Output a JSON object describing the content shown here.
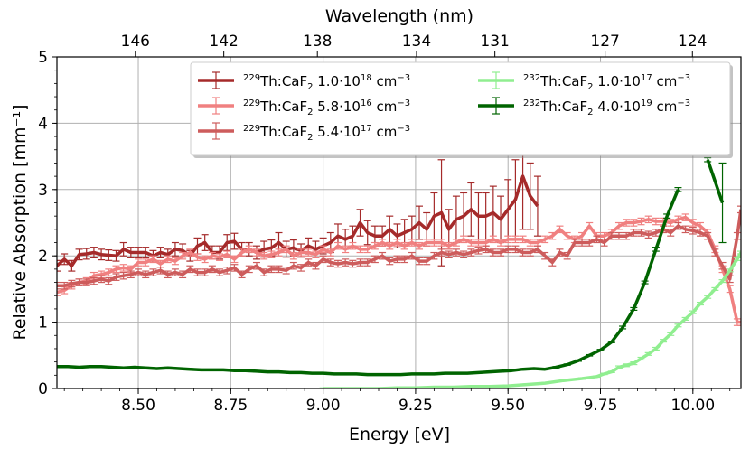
{
  "chart_data": {
    "type": "line",
    "xlabel": "Energy [eV]",
    "ylabel": "Relative Absorption [mm⁻¹]",
    "top_xlabel": "Wavelength (nm)",
    "xlim": [
      8.28,
      10.13
    ],
    "ylim": [
      0,
      5
    ],
    "xticks": [
      8.5,
      8.75,
      9.0,
      9.25,
      9.5,
      9.75,
      10.0
    ],
    "xtick_labels": [
      "8.50",
      "8.75",
      "9.00",
      "9.25",
      "9.50",
      "9.75",
      "10.00"
    ],
    "yticks": [
      0,
      1,
      2,
      3,
      4,
      5
    ],
    "ytick_labels": [
      "0",
      "1",
      "2",
      "3",
      "4",
      "5"
    ],
    "top_ticks_nm": [
      146,
      142,
      138,
      134,
      131,
      127,
      124
    ],
    "top_tick_labels": [
      "146",
      "142",
      "138",
      "134",
      "131",
      "127",
      "124"
    ],
    "grid": true,
    "legend_position": "top-right",
    "series": [
      {
        "name": "229Th:CaF2 1.0e18",
        "legend": {
          "sup": "229",
          "base": "Th:CaF",
          "sub": "2",
          "conc": "  1.0·10",
          "exp": "18",
          "unit": " cm",
          "unit_exp": "−3"
        },
        "color": "#a52a2a",
        "x": [
          8.28,
          8.3,
          8.32,
          8.34,
          8.36,
          8.38,
          8.4,
          8.42,
          8.44,
          8.46,
          8.48,
          8.5,
          8.52,
          8.54,
          8.56,
          8.58,
          8.6,
          8.62,
          8.64,
          8.66,
          8.68,
          8.7,
          8.72,
          8.74,
          8.76,
          8.78,
          8.8,
          8.82,
          8.84,
          8.86,
          8.88,
          8.9,
          8.92,
          8.94,
          8.96,
          8.98,
          9.0,
          9.02,
          9.04,
          9.06,
          9.08,
          9.1,
          9.12,
          9.14,
          9.16,
          9.18,
          9.2,
          9.22,
          9.24,
          9.26,
          9.28,
          9.3,
          9.32,
          9.34,
          9.36,
          9.38,
          9.4,
          9.42,
          9.44,
          9.46,
          9.48,
          9.5,
          9.52,
          9.54,
          9.56,
          9.58
        ],
        "y": [
          1.85,
          1.95,
          1.85,
          2.02,
          2.03,
          2.05,
          2.02,
          2.01,
          2.0,
          2.1,
          2.05,
          2.05,
          2.05,
          2.0,
          2.05,
          2.02,
          2.1,
          2.08,
          2.0,
          2.15,
          2.2,
          2.05,
          2.05,
          2.2,
          2.22,
          2.1,
          2.1,
          2.05,
          2.1,
          2.12,
          2.2,
          2.1,
          2.12,
          2.08,
          2.15,
          2.1,
          2.15,
          2.2,
          2.3,
          2.25,
          2.3,
          2.5,
          2.35,
          2.3,
          2.3,
          2.4,
          2.3,
          2.35,
          2.4,
          2.5,
          2.4,
          2.6,
          2.65,
          2.4,
          2.55,
          2.6,
          2.7,
          2.6,
          2.6,
          2.65,
          2.55,
          2.7,
          2.85,
          3.2,
          2.9,
          2.75
        ],
        "err": [
          0.08,
          0.08,
          0.08,
          0.08,
          0.08,
          0.08,
          0.08,
          0.08,
          0.08,
          0.1,
          0.08,
          0.08,
          0.08,
          0.08,
          0.08,
          0.08,
          0.1,
          0.1,
          0.08,
          0.12,
          0.12,
          0.1,
          0.1,
          0.12,
          0.12,
          0.1,
          0.1,
          0.1,
          0.12,
          0.12,
          0.15,
          0.12,
          0.12,
          0.1,
          0.12,
          0.12,
          0.12,
          0.15,
          0.18,
          0.15,
          0.15,
          0.2,
          0.18,
          0.15,
          0.15,
          0.2,
          0.18,
          0.2,
          0.2,
          0.25,
          0.25,
          0.35,
          0.8,
          0.3,
          0.35,
          0.35,
          0.4,
          0.35,
          0.35,
          0.4,
          0.35,
          0.45,
          0.6,
          0.8,
          0.5,
          0.45
        ]
      },
      {
        "name": "229Th:CaF2 5.8e16",
        "legend": {
          "sup": "229",
          "base": "Th:CaF",
          "sub": "2",
          "conc": " 5.8·10",
          "exp": "16",
          "unit": " cm",
          "unit_exp": "−3"
        },
        "color": "#f08080",
        "x": [
          8.28,
          8.3,
          8.32,
          8.34,
          8.36,
          8.38,
          8.4,
          8.42,
          8.44,
          8.46,
          8.48,
          8.5,
          8.52,
          8.54,
          8.56,
          8.58,
          8.6,
          8.62,
          8.64,
          8.66,
          8.68,
          8.7,
          8.72,
          8.74,
          8.76,
          8.78,
          8.8,
          8.82,
          8.84,
          8.86,
          8.88,
          8.9,
          8.92,
          8.94,
          8.96,
          8.98,
          9.0,
          9.02,
          9.04,
          9.06,
          9.08,
          9.1,
          9.12,
          9.14,
          9.16,
          9.18,
          9.2,
          9.22,
          9.24,
          9.26,
          9.28,
          9.3,
          9.32,
          9.34,
          9.36,
          9.38,
          9.4,
          9.42,
          9.44,
          9.46,
          9.48,
          9.5,
          9.52,
          9.54,
          9.56,
          9.58,
          9.6,
          9.62,
          9.64,
          9.66,
          9.68,
          9.7,
          9.72,
          9.74,
          9.76,
          9.78,
          9.8,
          9.82,
          9.84,
          9.86,
          9.88,
          9.9,
          9.92,
          9.94,
          9.96,
          9.98,
          10.0,
          10.02,
          10.04,
          10.06,
          10.08,
          10.1,
          10.12,
          10.13
        ],
        "y": [
          1.45,
          1.48,
          1.55,
          1.6,
          1.62,
          1.7,
          1.72,
          1.75,
          1.8,
          1.82,
          1.8,
          1.9,
          1.9,
          1.95,
          1.88,
          1.95,
          1.92,
          2.0,
          2.05,
          1.98,
          1.95,
          2.0,
          1.98,
          2.02,
          1.95,
          2.05,
          2.1,
          2.05,
          2.0,
          2.02,
          2.05,
          2.1,
          2.0,
          2.05,
          2.05,
          2.02,
          2.1,
          2.05,
          2.15,
          2.1,
          2.15,
          2.1,
          2.1,
          2.15,
          2.2,
          2.15,
          2.2,
          2.15,
          2.2,
          2.15,
          2.2,
          2.2,
          2.2,
          2.15,
          2.2,
          2.25,
          2.2,
          2.2,
          2.2,
          2.25,
          2.2,
          2.25,
          2.25,
          2.25,
          2.2,
          2.2,
          2.25,
          2.3,
          2.4,
          2.3,
          2.25,
          2.3,
          2.45,
          2.3,
          2.3,
          2.35,
          2.45,
          2.5,
          2.5,
          2.52,
          2.55,
          2.52,
          2.52,
          2.5,
          2.55,
          2.58,
          2.5,
          2.45,
          2.35,
          2.1,
          1.8,
          1.5,
          1.0,
          1.0
        ],
        "err": [
          0.05,
          0.05,
          0.05,
          0.05,
          0.05,
          0.05,
          0.05,
          0.05,
          0.05,
          0.05,
          0.05,
          0.05,
          0.05,
          0.05,
          0.05,
          0.05,
          0.05,
          0.05,
          0.05,
          0.05,
          0.05,
          0.05,
          0.05,
          0.05,
          0.05,
          0.05,
          0.05,
          0.05,
          0.05,
          0.05,
          0.05,
          0.05,
          0.05,
          0.05,
          0.05,
          0.05,
          0.05,
          0.05,
          0.05,
          0.05,
          0.05,
          0.05,
          0.05,
          0.05,
          0.05,
          0.05,
          0.05,
          0.05,
          0.05,
          0.05,
          0.05,
          0.05,
          0.05,
          0.05,
          0.05,
          0.05,
          0.05,
          0.05,
          0.05,
          0.05,
          0.05,
          0.05,
          0.05,
          0.05,
          0.05,
          0.05,
          0.05,
          0.05,
          0.05,
          0.05,
          0.05,
          0.05,
          0.05,
          0.05,
          0.05,
          0.05,
          0.05,
          0.05,
          0.05,
          0.05,
          0.05,
          0.05,
          0.05,
          0.05,
          0.05,
          0.05,
          0.05,
          0.05,
          0.05,
          0.05,
          0.05,
          0.05,
          0.05,
          0.05
        ]
      },
      {
        "name": "229Th:CaF2 5.4e17",
        "legend": {
          "sup": "229",
          "base": "Th:CaF",
          "sub": "2",
          "conc": " 5.4·10",
          "exp": "17",
          "unit": " cm",
          "unit_exp": "−3"
        },
        "color": "#cd5c5c",
        "x": [
          8.28,
          8.3,
          8.32,
          8.34,
          8.36,
          8.38,
          8.4,
          8.42,
          8.44,
          8.46,
          8.48,
          8.5,
          8.52,
          8.54,
          8.56,
          8.58,
          8.6,
          8.62,
          8.64,
          8.66,
          8.68,
          8.7,
          8.72,
          8.74,
          8.76,
          8.78,
          8.8,
          8.82,
          8.84,
          8.86,
          8.88,
          8.9,
          8.92,
          8.94,
          8.96,
          8.98,
          9.0,
          9.02,
          9.04,
          9.06,
          9.08,
          9.1,
          9.12,
          9.14,
          9.16,
          9.18,
          9.2,
          9.22,
          9.24,
          9.26,
          9.28,
          9.3,
          9.32,
          9.34,
          9.36,
          9.38,
          9.4,
          9.42,
          9.44,
          9.46,
          9.48,
          9.5,
          9.52,
          9.54,
          9.56,
          9.58,
          9.6,
          9.62,
          9.64,
          9.66,
          9.68,
          9.7,
          9.72,
          9.74,
          9.76,
          9.78,
          9.8,
          9.82,
          9.84,
          9.86,
          9.88,
          9.9,
          9.92,
          9.94,
          9.96,
          9.98,
          10.0,
          10.02,
          10.04,
          10.06,
          10.08,
          10.1,
          10.12,
          10.13
        ],
        "y": [
          1.55,
          1.55,
          1.58,
          1.6,
          1.6,
          1.62,
          1.65,
          1.62,
          1.68,
          1.7,
          1.72,
          1.75,
          1.72,
          1.75,
          1.78,
          1.72,
          1.75,
          1.72,
          1.8,
          1.75,
          1.75,
          1.8,
          1.75,
          1.78,
          1.82,
          1.72,
          1.8,
          1.85,
          1.75,
          1.8,
          1.8,
          1.78,
          1.85,
          1.82,
          1.9,
          1.85,
          1.95,
          1.9,
          1.88,
          1.9,
          1.88,
          1.9,
          1.9,
          1.95,
          2.0,
          1.92,
          1.95,
          1.95,
          2.0,
          1.92,
          1.92,
          2.0,
          2.05,
          2.02,
          2.05,
          2.02,
          2.05,
          2.08,
          2.1,
          2.05,
          2.05,
          2.1,
          2.1,
          2.05,
          2.05,
          2.1,
          2.0,
          1.9,
          2.05,
          2.0,
          2.2,
          2.2,
          2.2,
          2.25,
          2.2,
          2.3,
          2.3,
          2.3,
          2.35,
          2.35,
          2.32,
          2.35,
          2.4,
          2.35,
          2.45,
          2.4,
          2.38,
          2.35,
          2.3,
          2.05,
          1.85,
          1.65,
          2.3,
          2.7
        ],
        "err": [
          0.05,
          0.05,
          0.05,
          0.05,
          0.05,
          0.05,
          0.05,
          0.05,
          0.05,
          0.05,
          0.05,
          0.05,
          0.05,
          0.05,
          0.05,
          0.05,
          0.05,
          0.05,
          0.05,
          0.05,
          0.05,
          0.05,
          0.05,
          0.05,
          0.05,
          0.05,
          0.05,
          0.05,
          0.05,
          0.05,
          0.05,
          0.05,
          0.05,
          0.05,
          0.05,
          0.05,
          0.05,
          0.05,
          0.05,
          0.05,
          0.05,
          0.05,
          0.05,
          0.05,
          0.05,
          0.05,
          0.05,
          0.05,
          0.05,
          0.05,
          0.05,
          0.05,
          0.05,
          0.05,
          0.05,
          0.05,
          0.05,
          0.05,
          0.05,
          0.05,
          0.05,
          0.05,
          0.05,
          0.05,
          0.05,
          0.05,
          0.05,
          0.05,
          0.05,
          0.05,
          0.05,
          0.05,
          0.05,
          0.05,
          0.05,
          0.05,
          0.05,
          0.05,
          0.05,
          0.05,
          0.05,
          0.05,
          0.05,
          0.05,
          0.05,
          0.05,
          0.05,
          0.05,
          0.05,
          0.05,
          0.05,
          0.05,
          0.05,
          0.05
        ]
      },
      {
        "name": "232Th:CaF2 1.0e17",
        "legend": {
          "sup": "232",
          "base": "Th:CaF",
          "sub": "2",
          "conc": " 1.0·10",
          "exp": "17",
          "unit": " cm",
          "unit_exp": "−3"
        },
        "color": "#90ee90",
        "x": [
          9.0,
          9.05,
          9.1,
          9.15,
          9.2,
          9.25,
          9.3,
          9.35,
          9.4,
          9.45,
          9.5,
          9.55,
          9.6,
          9.65,
          9.7,
          9.74,
          9.76,
          9.78,
          9.8,
          9.82,
          9.84,
          9.86,
          9.88,
          9.9,
          9.92,
          9.94,
          9.96,
          9.98,
          10.0,
          10.02,
          10.04,
          10.06,
          10.08,
          10.1,
          10.12,
          10.13
        ],
        "y": [
          0.0,
          0.0,
          0.0,
          0.0,
          0.01,
          0.01,
          0.02,
          0.02,
          0.03,
          0.03,
          0.04,
          0.06,
          0.08,
          0.12,
          0.15,
          0.18,
          0.22,
          0.25,
          0.32,
          0.35,
          0.38,
          0.45,
          0.52,
          0.6,
          0.72,
          0.82,
          0.95,
          1.05,
          1.15,
          1.28,
          1.38,
          1.5,
          1.62,
          1.78,
          1.95,
          2.05
        ],
        "err": [
          0.01,
          0.01,
          0.01,
          0.01,
          0.01,
          0.01,
          0.01,
          0.01,
          0.01,
          0.01,
          0.01,
          0.01,
          0.01,
          0.01,
          0.01,
          0.01,
          0.01,
          0.01,
          0.02,
          0.02,
          0.02,
          0.02,
          0.02,
          0.02,
          0.02,
          0.02,
          0.02,
          0.02,
          0.02,
          0.02,
          0.02,
          0.02,
          0.02,
          0.02,
          0.02,
          0.02
        ]
      },
      {
        "name": "232Th:CaF2 4.0e19",
        "legend": {
          "sup": "232",
          "base": "Th:CaF",
          "sub": "2",
          "conc": " 4.0·10",
          "exp": "19",
          "unit": " cm",
          "unit_exp": "−3"
        },
        "color": "#006400",
        "x": [
          8.28,
          8.31,
          8.34,
          8.37,
          8.4,
          8.43,
          8.46,
          8.49,
          8.52,
          8.55,
          8.58,
          8.61,
          8.64,
          8.67,
          8.7,
          8.73,
          8.76,
          8.79,
          8.82,
          8.85,
          8.88,
          8.91,
          8.94,
          8.97,
          9.0,
          9.03,
          9.06,
          9.09,
          9.12,
          9.15,
          9.18,
          9.21,
          9.24,
          9.27,
          9.3,
          9.33,
          9.36,
          9.39,
          9.42,
          9.45,
          9.48,
          9.51,
          9.54,
          9.57,
          9.6,
          9.63,
          9.66,
          9.69,
          9.72,
          9.75,
          9.78,
          9.81,
          9.84,
          9.87,
          9.9,
          9.93,
          9.96
        ],
        "y": [
          0.33,
          0.33,
          0.32,
          0.33,
          0.33,
          0.32,
          0.31,
          0.32,
          0.31,
          0.3,
          0.31,
          0.3,
          0.29,
          0.28,
          0.28,
          0.28,
          0.27,
          0.27,
          0.26,
          0.25,
          0.25,
          0.24,
          0.24,
          0.23,
          0.23,
          0.22,
          0.22,
          0.22,
          0.21,
          0.21,
          0.21,
          0.21,
          0.22,
          0.22,
          0.22,
          0.23,
          0.23,
          0.23,
          0.24,
          0.25,
          0.26,
          0.27,
          0.29,
          0.3,
          0.29,
          0.32,
          0.36,
          0.42,
          0.5,
          0.58,
          0.7,
          0.92,
          1.2,
          1.6,
          2.1,
          2.6,
          3.0
        ],
        "err": [
          0.01,
          0.01,
          0.01,
          0.01,
          0.01,
          0.01,
          0.01,
          0.01,
          0.01,
          0.01,
          0.01,
          0.01,
          0.01,
          0.01,
          0.01,
          0.01,
          0.01,
          0.01,
          0.01,
          0.01,
          0.01,
          0.01,
          0.01,
          0.01,
          0.01,
          0.01,
          0.01,
          0.01,
          0.01,
          0.01,
          0.01,
          0.01,
          0.01,
          0.01,
          0.01,
          0.01,
          0.01,
          0.01,
          0.01,
          0.01,
          0.01,
          0.01,
          0.01,
          0.01,
          0.01,
          0.01,
          0.01,
          0.01,
          0.01,
          0.01,
          0.01,
          0.02,
          0.02,
          0.02,
          0.03,
          0.03,
          0.03
        ]
      },
      {
        "name": "232Th:CaF2 4.0e19 (high-energy segment)",
        "color": "#006400",
        "x": [
          10.04,
          10.08
        ],
        "y": [
          3.45,
          2.8
        ],
        "err": [
          0.03,
          0.6
        ]
      }
    ]
  }
}
